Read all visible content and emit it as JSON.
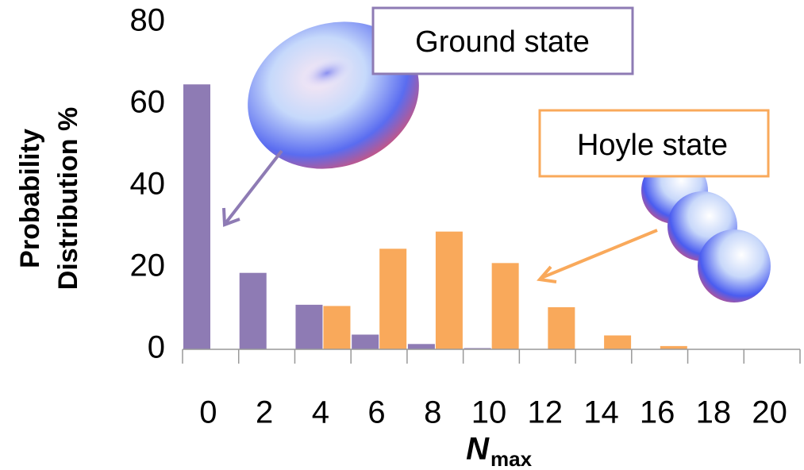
{
  "chart_data": {
    "type": "bar",
    "ylabel": [
      "Probability",
      "Distribution %"
    ],
    "xlabel": {
      "main": "N",
      "sub": "max"
    },
    "categories": [
      0,
      2,
      4,
      6,
      8,
      10,
      12,
      14,
      16,
      18,
      20
    ],
    "series": [
      {
        "name": "Ground state",
        "color": "#8e7bb4",
        "values": [
          64.8,
          18.7,
          10.9,
          3.6,
          1.3,
          0.3,
          0,
          0,
          0,
          0,
          0
        ]
      },
      {
        "name": "Hoyle state",
        "color": "#f9a95b",
        "values": [
          0,
          0,
          10.6,
          24.6,
          28.8,
          21.1,
          10.3,
          3.4,
          0.8,
          0,
          0
        ]
      }
    ],
    "ylim": [
      0,
      80
    ],
    "yticks": [
      0,
      20,
      40,
      60,
      80
    ],
    "grid": false
  }
}
